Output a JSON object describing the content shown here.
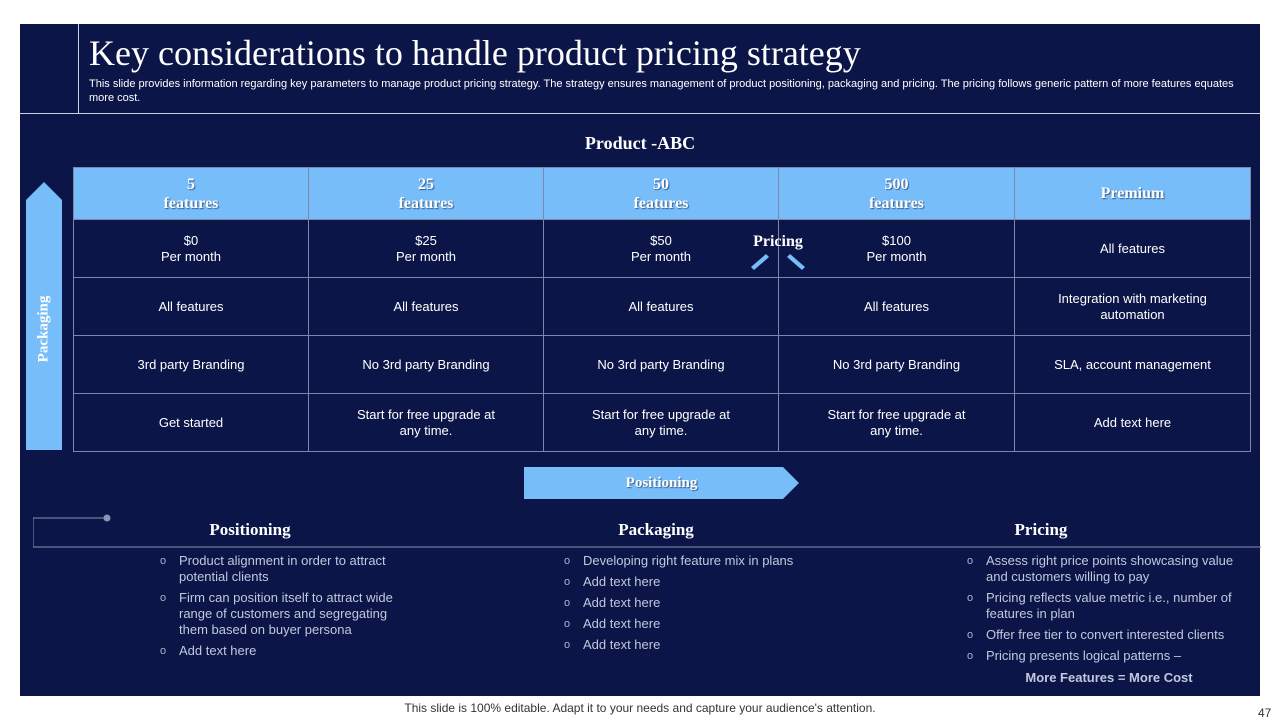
{
  "title": "Key considerations to handle product pricing strategy",
  "subtitle": "This slide provides information regarding key parameters to manage product pricing strategy. The strategy ensures management of product positioning, packaging and pricing. The pricing follows generic pattern of more features equates more cost.",
  "product_title": "Product -ABC",
  "side_label": "Packaging",
  "pricing_label": "Pricing",
  "positioning_arrow_label": "Positioning",
  "table": {
    "headers": [
      {
        "line1": "5",
        "line2": "features"
      },
      {
        "line1": "25",
        "line2": "features"
      },
      {
        "line1": "50",
        "line2": "features"
      },
      {
        "line1": "500",
        "line2": "features"
      },
      {
        "line1": "Premium",
        "line2": ""
      }
    ],
    "rows": [
      [
        {
          "line1": "$0",
          "line2": "Per month"
        },
        {
          "line1": "$25",
          "line2": "Per month"
        },
        {
          "line1": "$50",
          "line2": "Per month"
        },
        {
          "line1": "$100",
          "line2": "Per month"
        },
        {
          "line1": "All features",
          "line2": ""
        }
      ],
      [
        {
          "line1": "All features",
          "line2": ""
        },
        {
          "line1": "All features",
          "line2": ""
        },
        {
          "line1": "All features",
          "line2": ""
        },
        {
          "line1": "All features",
          "line2": ""
        },
        {
          "line1": "Integration  with marketing",
          "line2": "automation"
        }
      ],
      [
        {
          "line1": "3rd party Branding",
          "line2": ""
        },
        {
          "line1": "No 3rd party Branding",
          "line2": ""
        },
        {
          "line1": "No 3rd party Branding",
          "line2": ""
        },
        {
          "line1": "No 3rd party Branding",
          "line2": ""
        },
        {
          "line1": "SLA, account management",
          "line2": ""
        }
      ],
      [
        {
          "line1": "Get started",
          "line2": ""
        },
        {
          "line1": "Start for free upgrade  at",
          "line2": "any time."
        },
        {
          "line1": "Start for free upgrade  at",
          "line2": "any time."
        },
        {
          "line1": "Start for free upgrade  at",
          "line2": "any time."
        },
        {
          "line1": "Add text here",
          "line2": ""
        }
      ]
    ]
  },
  "columns": [
    {
      "heading": "Positioning",
      "bullets": [
        "Product alignment in order to attract potential clients",
        "Firm can position itself to attract wide range of customers and segregating them based on buyer persona",
        "Add text here"
      ]
    },
    {
      "heading": "Packaging",
      "bullets": [
        "Developing  right feature mix in plans",
        "Add text here",
        "Add text here",
        "Add text here",
        "Add text here"
      ]
    },
    {
      "heading": "Pricing",
      "bullets": [
        "Assess right price points showcasing value and customers willing to pay",
        "Pricing reflects value metric i.e., number of features in plan",
        "Offer free tier to convert interested clients",
        "Pricing presents logical patterns –"
      ],
      "emphasis": "More Features = More Cost"
    }
  ],
  "footer": "This slide is 100% editable. Adapt it to your needs and capture your audience's attention.",
  "page_number": "47",
  "colors": {
    "background": "#0b1547",
    "accent": "#77bdfa",
    "border": "#7d87aa"
  }
}
